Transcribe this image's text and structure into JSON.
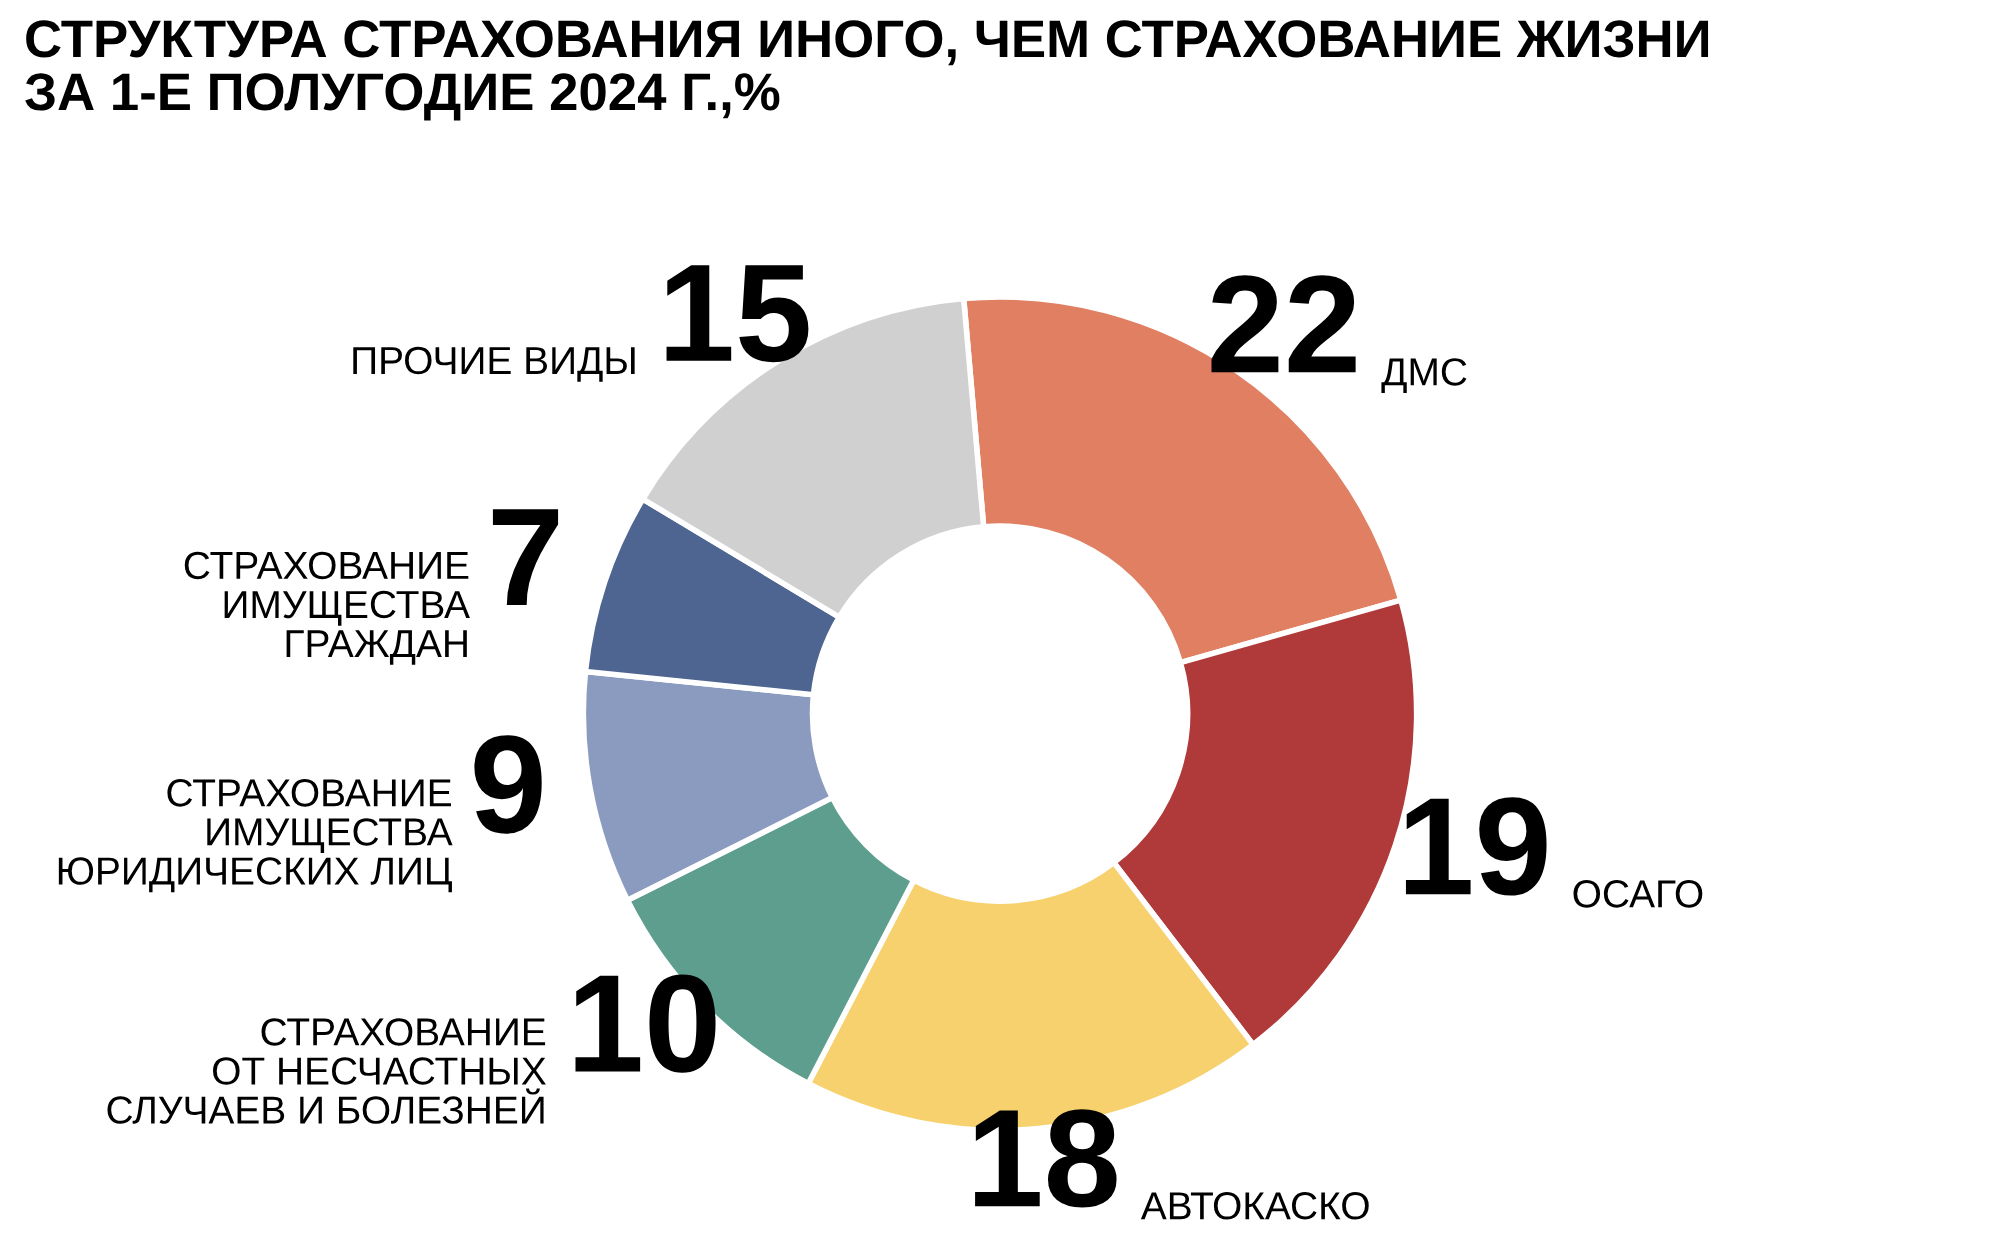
{
  "chart_data": {
    "type": "donut",
    "title": "СТРУКТУРА СТРАХОВАНИЯ ИНОГО, ЧЕМ СТРАХОВАНИЕ ЖИЗНИ\nЗА 1-Е ПОЛУГОДИЕ 2024 Г.,%",
    "categories": [
      "ДМС",
      "ОСАГО",
      "АВТОКАСКО",
      "СТРАХОВАНИЕ\nОТ НЕСЧАСТНЫХ\nСЛУЧАЕВ И БОЛЕЗНЕЙ",
      "СТРАХОВАНИЕ\nИМУЩЕСТВА\nЮРИДИЧЕСКИХ ЛИЦ",
      "СТРАХОВАНИЕ\nИМУЩЕСТВА\nГРАЖДАН",
      "ПРОЧИЕ ВИДЫ"
    ],
    "values": [
      22,
      19,
      18,
      10,
      9,
      7,
      15
    ],
    "colors": [
      "#e07f62",
      "#b03a3a",
      "#f7d16e",
      "#5e9e8f",
      "#8a9bbf",
      "#4e6592",
      "#d0d0d0"
    ],
    "data_labels": true
  }
}
